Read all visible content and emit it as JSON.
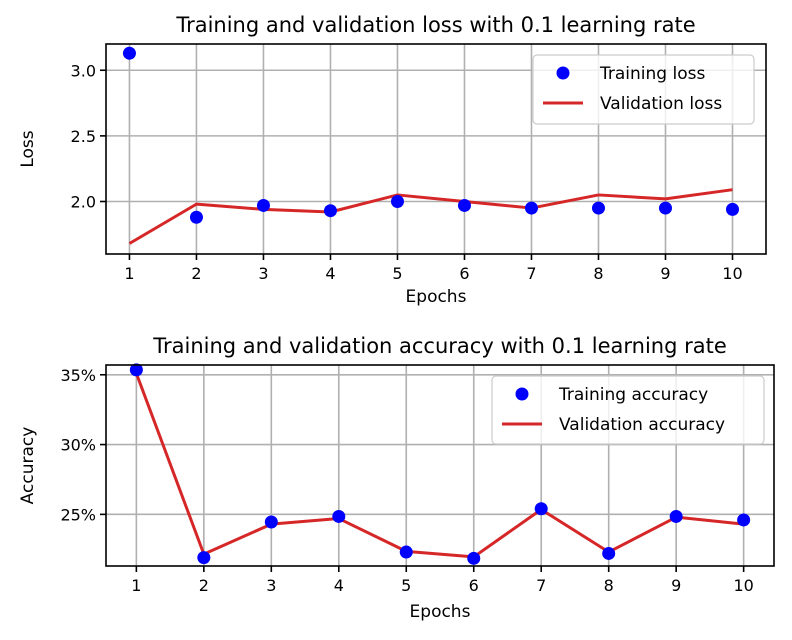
{
  "chart_data": [
    {
      "type": "line",
      "title": "Training and validation loss with 0.1 learning rate",
      "xlabel": "Epochs",
      "ylabel": "Loss",
      "x": [
        1,
        2,
        3,
        4,
        5,
        6,
        7,
        8,
        9,
        10
      ],
      "xticks": [
        "1",
        "2",
        "3",
        "4",
        "5",
        "6",
        "7",
        "8",
        "9",
        "10"
      ],
      "yticks": [
        "2.0",
        "2.5",
        "3.0"
      ],
      "yticks_values": [
        2.0,
        2.5,
        3.0
      ],
      "xlim": [
        0.65,
        10.5
      ],
      "ylim": [
        1.6,
        3.2
      ],
      "grid": true,
      "legend_position": "top-right",
      "series": [
        {
          "name": "Training loss",
          "style": "points",
          "color": "#0000ff",
          "values": [
            3.13,
            1.88,
            1.97,
            1.93,
            2.0,
            1.97,
            1.95,
            1.95,
            1.95,
            1.94
          ]
        },
        {
          "name": "Validation loss",
          "style": "line",
          "color": "#d62728",
          "values": [
            1.68,
            1.98,
            1.94,
            1.92,
            2.05,
            2.0,
            1.95,
            2.05,
            2.02,
            2.09
          ]
        }
      ]
    },
    {
      "type": "line",
      "title": "Training and validation accuracy with 0.1 learning rate",
      "xlabel": "Epochs",
      "ylabel": "Accuracy",
      "x": [
        1,
        2,
        3,
        4,
        5,
        6,
        7,
        8,
        9,
        10
      ],
      "xticks": [
        "1",
        "2",
        "3",
        "4",
        "5",
        "6",
        "7",
        "8",
        "9",
        "10"
      ],
      "yticks": [
        "25%",
        "30%",
        "35%"
      ],
      "yticks_values": [
        25,
        30,
        35
      ],
      "xlim": [
        0.55,
        10.45
      ],
      "ylim": [
        21.3,
        35.7
      ],
      "grid": true,
      "legend_position": "top-right",
      "series": [
        {
          "name": "Training accuracy",
          "style": "points",
          "color": "#0000ff",
          "values": [
            35.35,
            21.9,
            24.45,
            24.85,
            22.3,
            21.85,
            25.4,
            22.2,
            24.85,
            24.6
          ]
        },
        {
          "name": "Validation accuracy",
          "style": "line",
          "color": "#d62728",
          "values": [
            35.1,
            22.15,
            24.3,
            24.7,
            22.35,
            21.95,
            25.35,
            22.3,
            24.8,
            24.3
          ]
        }
      ]
    }
  ]
}
